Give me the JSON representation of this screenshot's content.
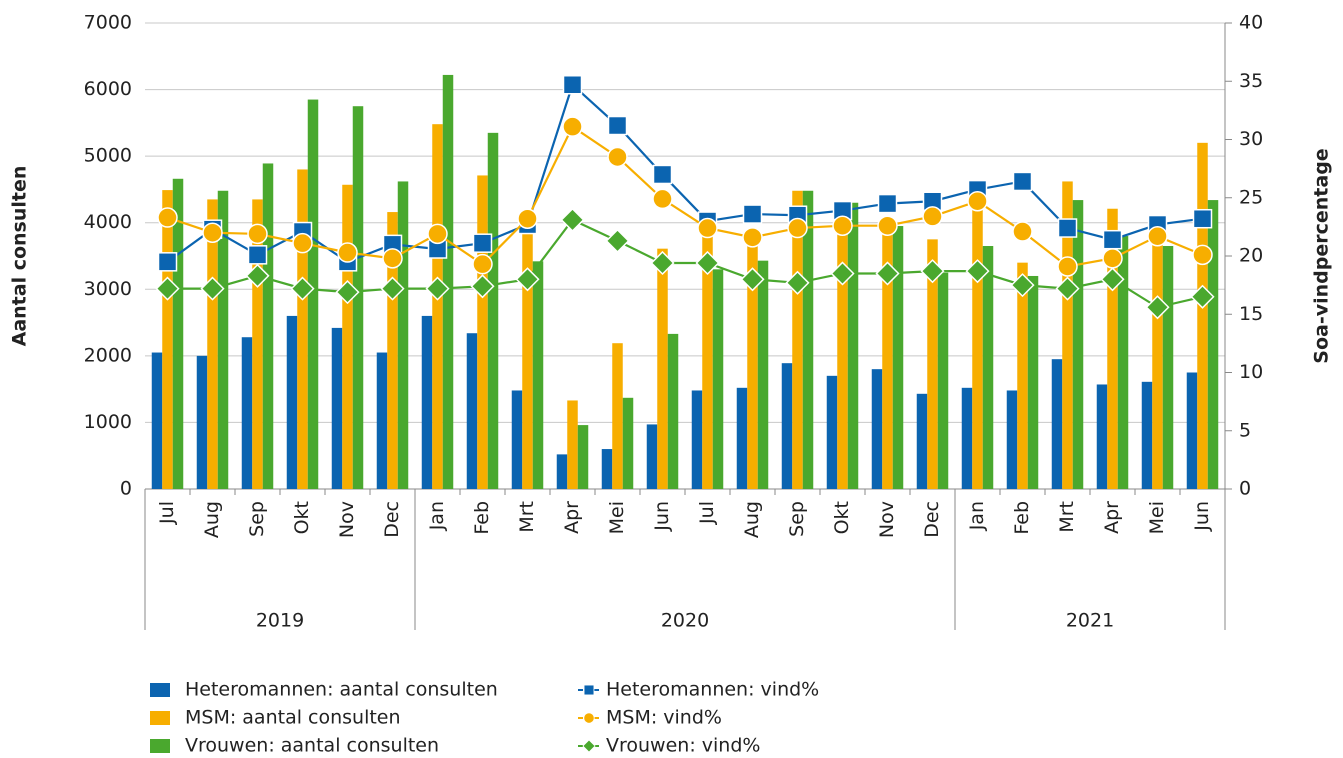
{
  "chart_data": {
    "type": "bar-line",
    "y_label": "Aantal consulten",
    "y2_label": "Soa-vindpercentage",
    "groups": [
      {
        "label": "2019",
        "categories": [
          "Jul",
          "Aug",
          "Sep",
          "Okt",
          "Nov",
          "Dec"
        ]
      },
      {
        "label": "2020",
        "categories": [
          "Jan",
          "Feb",
          "Mrt",
          "Apr",
          "Mei",
          "Jun",
          "Jul",
          "Aug",
          "Sep",
          "Okt",
          "Nov",
          "Dec"
        ]
      },
      {
        "label": "2021",
        "categories": [
          "Jan",
          "Feb",
          "Mrt",
          "Apr",
          "Mei",
          "Jun"
        ]
      }
    ],
    "ylim": [
      0,
      7000
    ],
    "yticks": [
      0,
      1000,
      2000,
      3000,
      4000,
      5000,
      6000,
      7000
    ],
    "y2lim": [
      0,
      40
    ],
    "y2ticks": [
      0,
      5,
      10,
      15,
      20,
      25,
      30,
      35,
      40
    ],
    "grid": true,
    "series": [
      {
        "name": "Heteromannen: aantal consulten",
        "kind": "bar",
        "color": "#0b64b0",
        "values": [
          2050,
          2000,
          2280,
          2600,
          2420,
          2050,
          2600,
          2340,
          1480,
          520,
          600,
          970,
          1480,
          1520,
          1890,
          1700,
          1800,
          1430,
          1520,
          1480,
          1950,
          1570,
          1610,
          1750
        ]
      },
      {
        "name": "MSM: aantal consulten",
        "kind": "bar",
        "color": "#f7ae00",
        "values": [
          4490,
          4350,
          4350,
          4800,
          4570,
          4160,
          5480,
          4710,
          4000,
          1330,
          2190,
          3610,
          3900,
          3750,
          4480,
          4200,
          4000,
          3750,
          4300,
          3400,
          4620,
          4210,
          4100,
          5200
        ]
      },
      {
        "name": "Vrouwen: aantal consulten",
        "kind": "bar",
        "color": "#4aa82e",
        "values": [
          4660,
          4480,
          4890,
          5850,
          5750,
          4620,
          6220,
          5350,
          3420,
          960,
          1370,
          2330,
          3300,
          3430,
          4480,
          4300,
          3950,
          3250,
          3650,
          3200,
          4340,
          3800,
          3650,
          4340
        ]
      },
      {
        "name": "Heteromannen: vind%",
        "kind": "line",
        "axis": "y2",
        "marker": "square",
        "color": "#0b64b0",
        "values": [
          19.5,
          22.3,
          20.1,
          22.1,
          19.5,
          21.0,
          20.6,
          21.1,
          22.7,
          34.7,
          31.2,
          27.0,
          23.0,
          23.6,
          23.5,
          23.9,
          24.5,
          24.7,
          25.7,
          26.4,
          22.4,
          21.4,
          22.7,
          23.2
        ]
      },
      {
        "name": "MSM: vind%",
        "kind": "line",
        "axis": "y2",
        "marker": "circle",
        "color": "#f7ae00",
        "values": [
          23.3,
          22.0,
          21.9,
          21.1,
          20.3,
          19.8,
          21.9,
          19.3,
          23.2,
          31.1,
          28.5,
          24.9,
          22.4,
          21.6,
          22.4,
          22.6,
          22.6,
          23.4,
          24.7,
          22.1,
          19.1,
          19.8,
          21.7,
          20.1
        ]
      },
      {
        "name": "Vrouwen: vind%",
        "kind": "line",
        "axis": "y2",
        "marker": "diamond",
        "color": "#4aa82e",
        "values": [
          17.2,
          17.2,
          18.3,
          17.2,
          16.9,
          17.2,
          17.2,
          17.4,
          18.0,
          23.1,
          21.3,
          19.4,
          19.4,
          18.0,
          17.7,
          18.5,
          18.5,
          18.7,
          18.7,
          17.5,
          17.2,
          18.0,
          15.6,
          16.5
        ]
      }
    ]
  }
}
